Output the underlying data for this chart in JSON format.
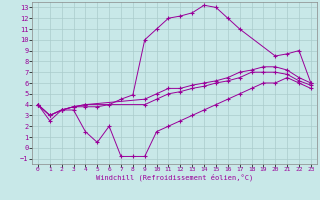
{
  "xlabel": "Windchill (Refroidissement éolien,°C)",
  "bg_color": "#c8e8e8",
  "line_color": "#990099",
  "grid_color": "#aacccc",
  "xlim": [
    -0.5,
    23.5
  ],
  "ylim": [
    -1.5,
    13.5
  ],
  "xticks": [
    0,
    1,
    2,
    3,
    4,
    5,
    6,
    7,
    8,
    9,
    10,
    11,
    12,
    13,
    14,
    15,
    16,
    17,
    18,
    19,
    20,
    21,
    22,
    23
  ],
  "yticks": [
    -1,
    0,
    1,
    2,
    3,
    4,
    5,
    6,
    7,
    8,
    9,
    10,
    11,
    12,
    13
  ],
  "line_curved_x": [
    0,
    1,
    2,
    3,
    4,
    5,
    6,
    7,
    8,
    9,
    10,
    11,
    12,
    13,
    14,
    15,
    16,
    17,
    20,
    21,
    22,
    23
  ],
  "line_curved_y": [
    4,
    3,
    3.5,
    3.8,
    3.8,
    3.8,
    4,
    4.5,
    4.9,
    10,
    11,
    12,
    12.2,
    12.5,
    13.2,
    13,
    12,
    11,
    8.5,
    8.7,
    9,
    6
  ],
  "line_upper_x": [
    0,
    1,
    2,
    3,
    4,
    9,
    10,
    11,
    12,
    13,
    14,
    15,
    16,
    17,
    18,
    19,
    20,
    21,
    22,
    23
  ],
  "line_upper_y": [
    4,
    3,
    3.5,
    3.8,
    4,
    4.5,
    5,
    5.5,
    5.5,
    5.8,
    6,
    6.2,
    6.5,
    7,
    7.2,
    7.5,
    7.5,
    7.2,
    6.5,
    6.0
  ],
  "line_mid_x": [
    0,
    1,
    2,
    3,
    4,
    9,
    10,
    11,
    12,
    13,
    14,
    15,
    16,
    17,
    18,
    19,
    20,
    21,
    22,
    23
  ],
  "line_mid_y": [
    4,
    3,
    3.5,
    3.8,
    4,
    4,
    4.5,
    5,
    5.2,
    5.5,
    5.7,
    6,
    6.2,
    6.5,
    7,
    7,
    7,
    6.8,
    6.2,
    5.8
  ],
  "line_lower_x": [
    0,
    1,
    2,
    3,
    4,
    5,
    6,
    7,
    8,
    9,
    10,
    11,
    12,
    13,
    14,
    15,
    16,
    17,
    18,
    19,
    20,
    21,
    22,
    23
  ],
  "line_lower_y": [
    4,
    2.5,
    3.5,
    3.5,
    1.5,
    0.5,
    2,
    -0.8,
    -0.8,
    -0.8,
    1.5,
    2,
    2.5,
    3,
    3.5,
    4,
    4.5,
    5,
    5.5,
    6,
    6,
    6.5,
    6,
    5.5
  ]
}
